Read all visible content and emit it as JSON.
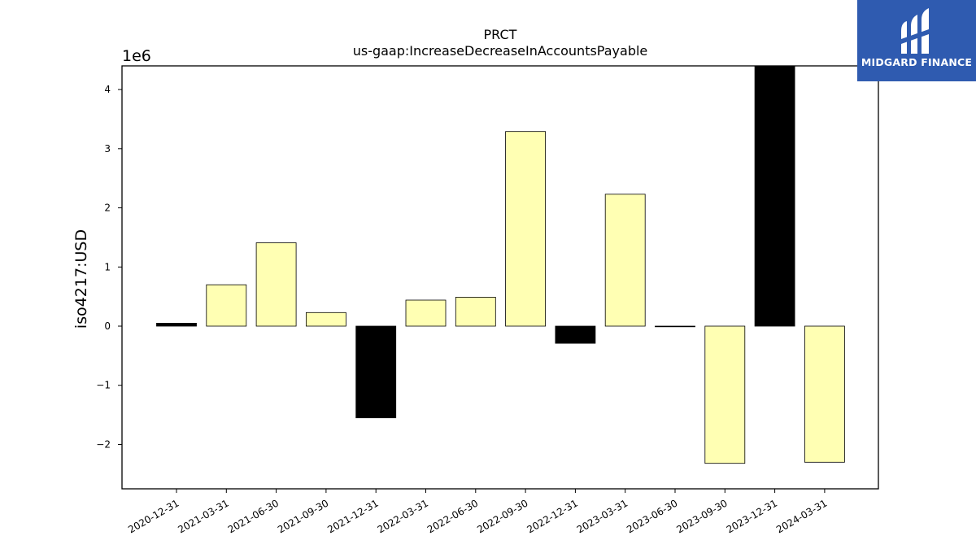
{
  "chart_data": {
    "type": "bar",
    "title": "PRCT",
    "subtitle": "us-gaap:IncreaseDecreaseInAccountsPayable",
    "ylabel": "iso4217:USD",
    "xlabel": "",
    "offset_label": "1e6",
    "ylim": [
      -2.75,
      4.4
    ],
    "yticks": [
      -2,
      -1,
      0,
      1,
      2,
      3,
      4
    ],
    "ytick_labels": [
      "−2",
      "−1",
      "0",
      "1",
      "2",
      "3",
      "4"
    ],
    "grid": false,
    "categories": [
      "2020-12-31",
      "2021-03-31",
      "2021-06-30",
      "2021-09-30",
      "2021-12-31",
      "2022-03-31",
      "2022-06-30",
      "2022-09-30",
      "2022-12-31",
      "2023-03-31",
      "2023-06-30",
      "2023-09-30",
      "2023-12-31",
      "2024-03-31"
    ],
    "values": [
      0.05,
      0.7,
      1.41,
      0.23,
      -1.55,
      0.44,
      0.49,
      3.29,
      -0.29,
      2.23,
      0.0,
      -2.32,
      4.45,
      -2.3
    ],
    "bar_colors": [
      "#000000",
      "#ffffb3",
      "#ffffb3",
      "#ffffb3",
      "#000000",
      "#ffffb3",
      "#ffffb3",
      "#ffffb3",
      "#000000",
      "#ffffb3",
      "#000000",
      "#ffffb3",
      "#000000",
      "#ffffb3"
    ]
  },
  "logo": {
    "text": "MIDGARD FINANCE",
    "color": "#2f5bb0"
  }
}
